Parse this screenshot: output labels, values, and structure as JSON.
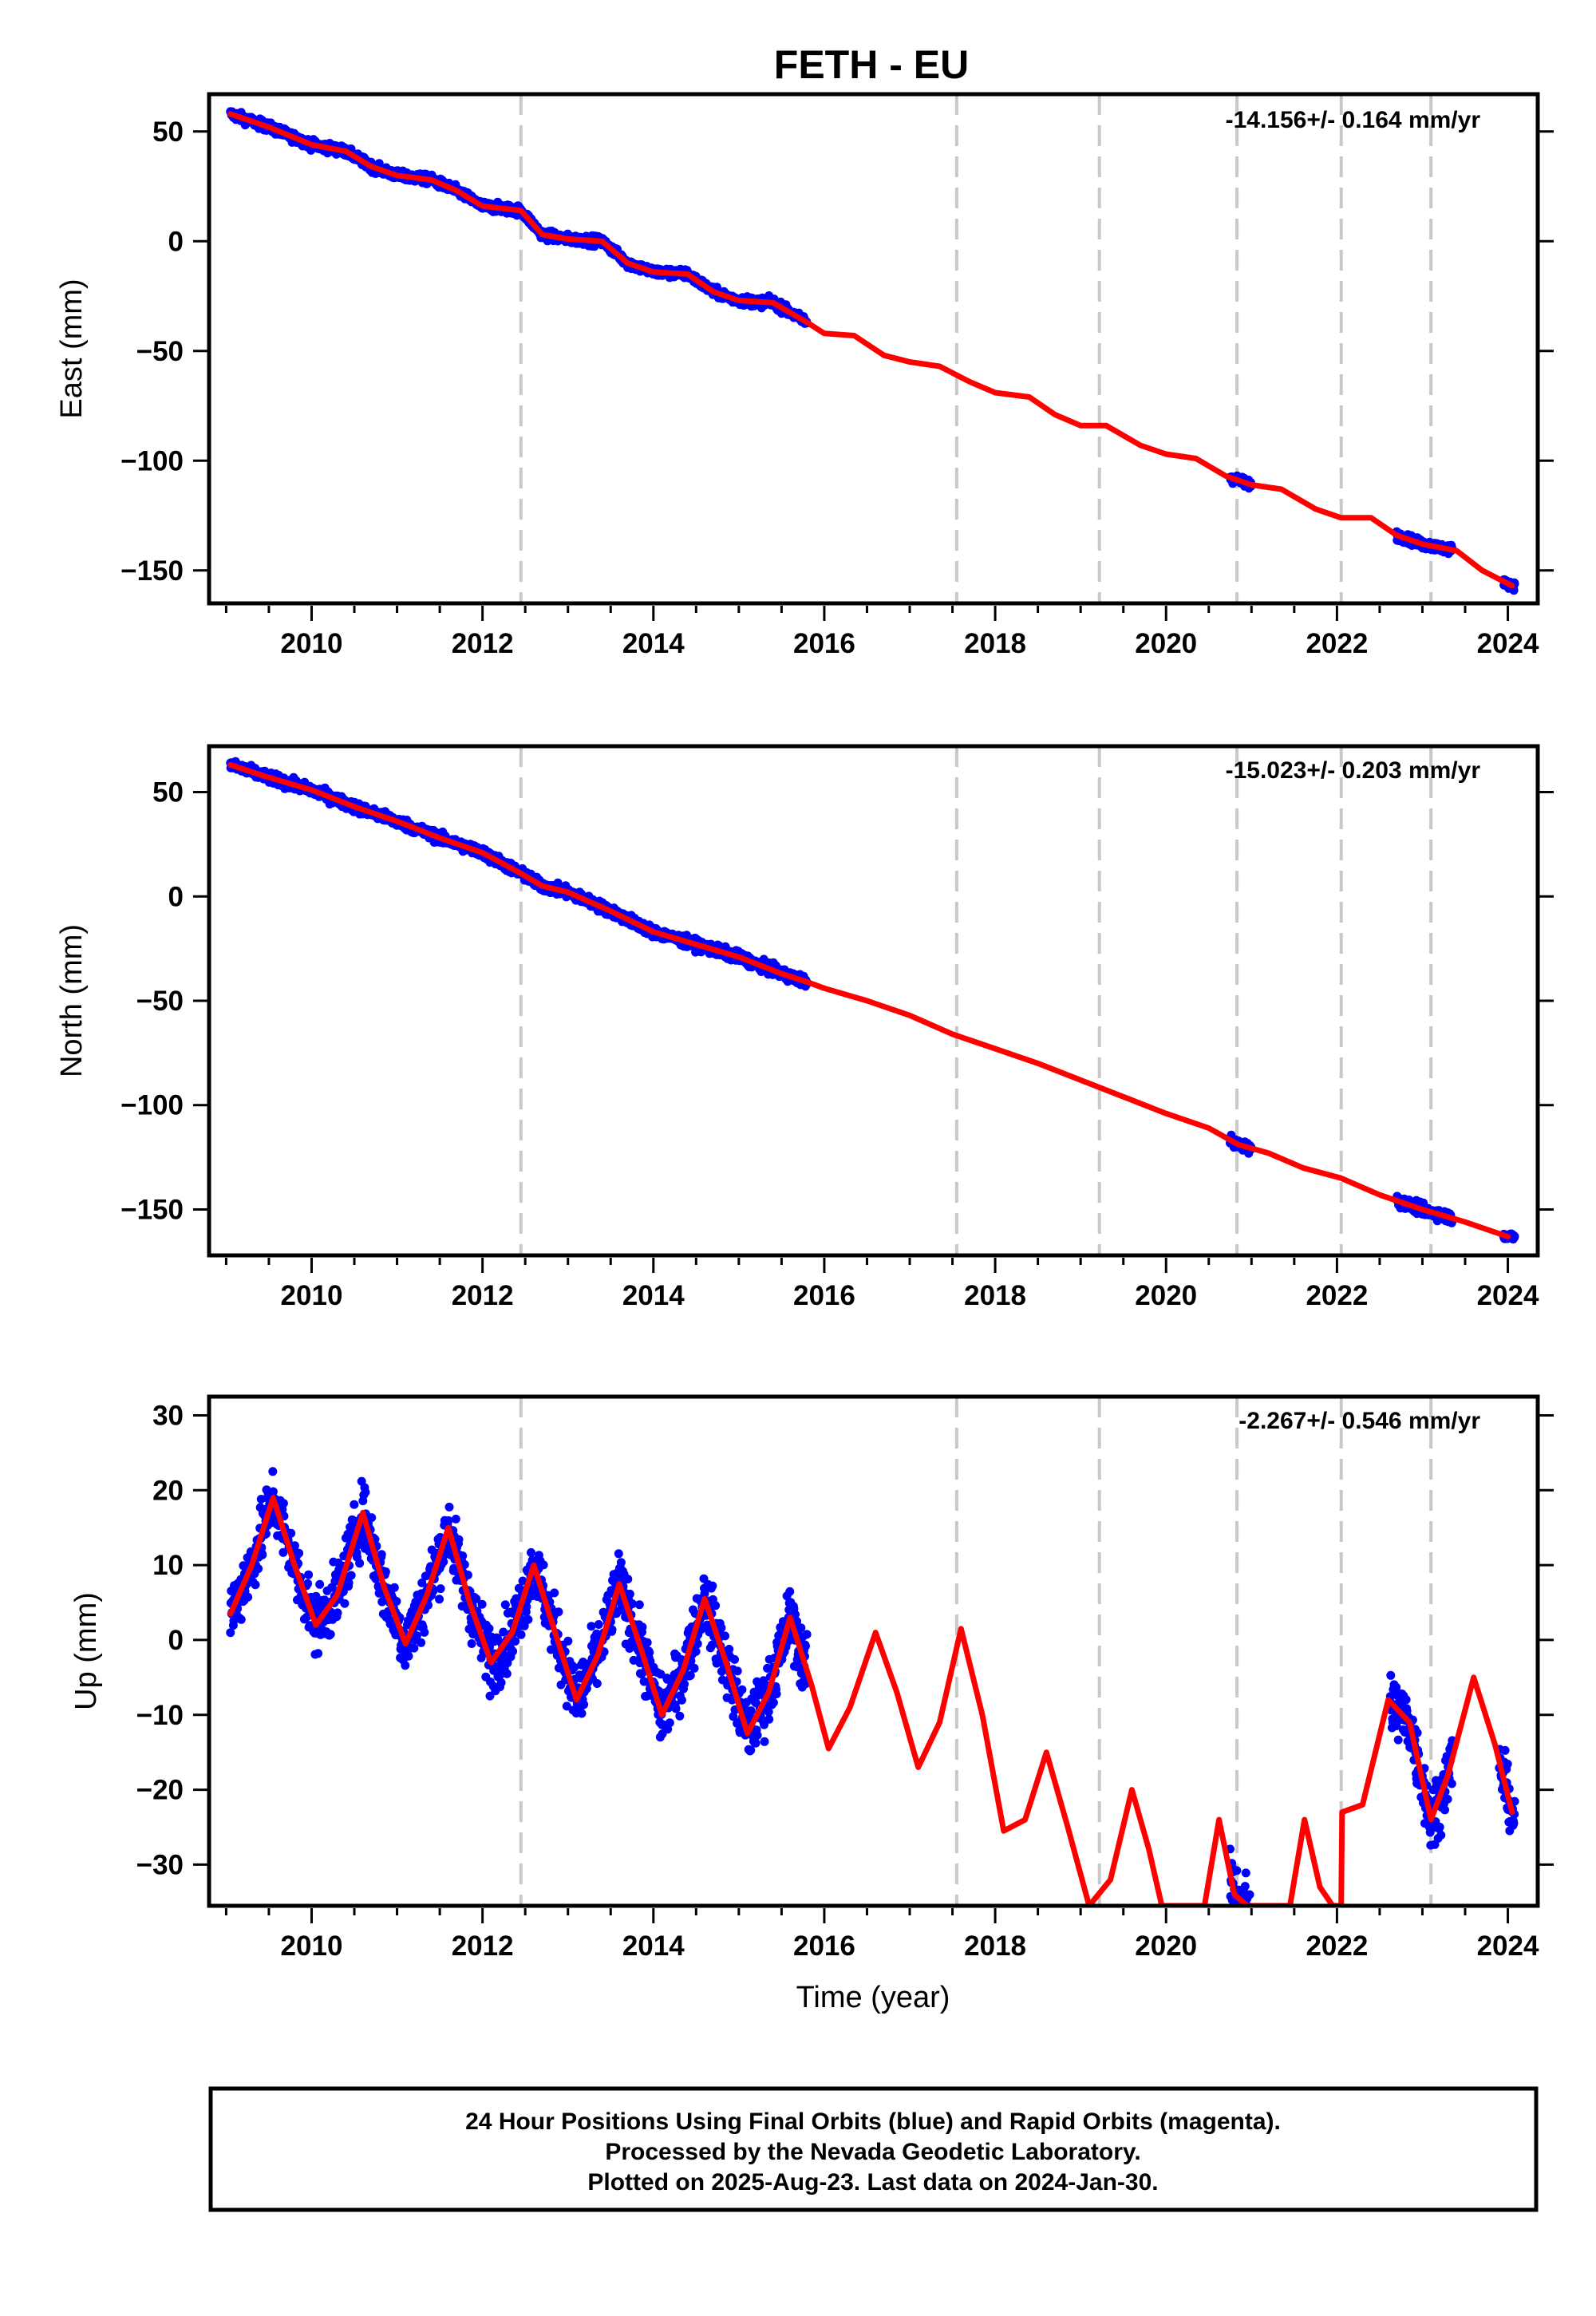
{
  "chart_data": {
    "title": "FETH - EU",
    "type": "scatter",
    "xlabel": "Time (year)",
    "xlim": [
      2008.8,
      2024.35
    ],
    "xticks": [
      2010,
      2012,
      2014,
      2016,
      2018,
      2020,
      2022,
      2024
    ],
    "equipment_change_epochs": [
      2012.45,
      2017.55,
      2019.22,
      2020.83,
      2022.05,
      2023.1
    ],
    "colors": {
      "data": "#0000ff",
      "model": "#ff0000",
      "event": "#c8c8c8"
    },
    "panels": [
      {
        "component": "East",
        "ylabel": "East (mm)",
        "ylim": [
          -165,
          67
        ],
        "yticks": [
          50,
          0,
          -50,
          -100,
          -150
        ],
        "rate_label": "-14.156+/- 0.164 mm/yr",
        "model_points": [
          [
            2009.05,
            58
          ],
          [
            2009.5,
            52
          ],
          [
            2010.0,
            44
          ],
          [
            2010.4,
            41
          ],
          [
            2010.7,
            34
          ],
          [
            2011.0,
            30
          ],
          [
            2011.4,
            28
          ],
          [
            2011.7,
            23
          ],
          [
            2012.0,
            16
          ],
          [
            2012.45,
            14
          ],
          [
            2012.7,
            3
          ],
          [
            2013.0,
            1
          ],
          [
            2013.4,
            0
          ],
          [
            2013.7,
            -10
          ],
          [
            2014.0,
            -14
          ],
          [
            2014.4,
            -15
          ],
          [
            2014.7,
            -23
          ],
          [
            2015.0,
            -27
          ],
          [
            2015.4,
            -28
          ],
          [
            2015.8,
            -37
          ],
          [
            2016.0,
            -42
          ],
          [
            2016.35,
            -43
          ],
          [
            2016.7,
            -52
          ],
          [
            2017.0,
            -55
          ],
          [
            2017.35,
            -57
          ],
          [
            2017.7,
            -64
          ],
          [
            2018.0,
            -69
          ],
          [
            2018.4,
            -71
          ],
          [
            2018.7,
            -79
          ],
          [
            2019.0,
            -84
          ],
          [
            2019.3,
            -84
          ],
          [
            2019.7,
            -93
          ],
          [
            2020.0,
            -97
          ],
          [
            2020.35,
            -99
          ],
          [
            2020.7,
            -107
          ],
          [
            2021.0,
            -111
          ],
          [
            2021.35,
            -113
          ],
          [
            2021.75,
            -122
          ],
          [
            2022.05,
            -126
          ],
          [
            2022.4,
            -126
          ],
          [
            2022.7,
            -134
          ],
          [
            2023.0,
            -138
          ],
          [
            2023.4,
            -141
          ],
          [
            2023.7,
            -150
          ],
          [
            2024.05,
            -157
          ]
        ],
        "data_segments": [
          {
            "start": 2009.05,
            "end": 2015.8,
            "amplitude": 2.5,
            "density": 1.6
          },
          {
            "start": 2020.75,
            "end": 2021.0,
            "amplitude": 2.5,
            "density": 1.6
          },
          {
            "start": 2022.7,
            "end": 2023.35,
            "amplitude": 2.5,
            "density": 1.6
          },
          {
            "start": 2023.95,
            "end": 2024.08,
            "amplitude": 2.0,
            "density": 1.6
          }
        ]
      },
      {
        "component": "North",
        "ylabel": "North (mm)",
        "ylim": [
          -172,
          72
        ],
        "yticks": [
          50,
          0,
          -50,
          -100,
          -150
        ],
        "rate_label": "-15.023+/- 0.203 mm/yr",
        "model_points": [
          [
            2009.05,
            63
          ],
          [
            2009.5,
            57
          ],
          [
            2010.0,
            51
          ],
          [
            2010.5,
            43
          ],
          [
            2011.0,
            36
          ],
          [
            2011.5,
            28
          ],
          [
            2012.0,
            21
          ],
          [
            2012.45,
            11
          ],
          [
            2012.7,
            5
          ],
          [
            2013.0,
            2
          ],
          [
            2013.5,
            -7
          ],
          [
            2014.0,
            -17
          ],
          [
            2014.5,
            -23
          ],
          [
            2015.0,
            -29
          ],
          [
            2015.5,
            -37
          ],
          [
            2015.8,
            -41
          ],
          [
            2016.0,
            -44
          ],
          [
            2016.5,
            -50
          ],
          [
            2017.0,
            -57
          ],
          [
            2017.5,
            -66
          ],
          [
            2018.0,
            -73
          ],
          [
            2018.5,
            -80
          ],
          [
            2019.0,
            -88
          ],
          [
            2019.5,
            -96
          ],
          [
            2020.0,
            -104
          ],
          [
            2020.5,
            -111
          ],
          [
            2020.85,
            -119
          ],
          [
            2021.2,
            -123
          ],
          [
            2021.6,
            -130
          ],
          [
            2022.05,
            -135
          ],
          [
            2022.5,
            -143
          ],
          [
            2023.0,
            -150
          ],
          [
            2023.5,
            -156
          ],
          [
            2024.0,
            -163
          ]
        ],
        "data_segments": [
          {
            "start": 2009.05,
            "end": 2015.8,
            "amplitude": 3.0,
            "density": 1.6
          },
          {
            "start": 2020.75,
            "end": 2021.0,
            "amplitude": 3.0,
            "density": 1.6
          },
          {
            "start": 2022.7,
            "end": 2023.35,
            "amplitude": 3.0,
            "density": 1.6
          },
          {
            "start": 2023.95,
            "end": 2024.08,
            "amplitude": 2.0,
            "density": 1.6
          }
        ]
      },
      {
        "component": "Up",
        "ylabel": "Up (mm)",
        "ylim": [
          -35.5,
          32.5
        ],
        "yticks": [
          30,
          20,
          10,
          0,
          -10,
          -20,
          -30
        ],
        "rate_label": "-2.267+/- 0.546 mm/yr",
        "model_points": [
          [
            2009.05,
            3.5
          ],
          [
            2009.3,
            10
          ],
          [
            2009.55,
            19
          ],
          [
            2009.8,
            10
          ],
          [
            2010.05,
            2
          ],
          [
            2010.3,
            6
          ],
          [
            2010.6,
            17
          ],
          [
            2010.85,
            7
          ],
          [
            2011.1,
            -0.5
          ],
          [
            2011.35,
            6
          ],
          [
            2011.6,
            15
          ],
          [
            2011.85,
            5
          ],
          [
            2012.1,
            -3
          ],
          [
            2012.35,
            1
          ],
          [
            2012.6,
            10
          ],
          [
            2012.85,
            1
          ],
          [
            2013.1,
            -8
          ],
          [
            2013.35,
            -2
          ],
          [
            2013.6,
            7.5
          ],
          [
            2013.85,
            -1
          ],
          [
            2014.1,
            -10
          ],
          [
            2014.35,
            -4
          ],
          [
            2014.6,
            5.5
          ],
          [
            2014.85,
            -3
          ],
          [
            2015.1,
            -12.5
          ],
          [
            2015.35,
            -7
          ],
          [
            2015.6,
            3
          ],
          [
            2015.85,
            -6
          ],
          [
            2016.05,
            -14.5
          ],
          [
            2016.3,
            -9
          ],
          [
            2016.6,
            1
          ],
          [
            2016.85,
            -7
          ],
          [
            2017.1,
            -17
          ],
          [
            2017.35,
            -11
          ],
          [
            2017.6,
            1.5
          ],
          [
            2017.85,
            -10
          ],
          [
            2018.1,
            -25.5
          ],
          [
            2018.35,
            -24
          ],
          [
            2018.6,
            -15
          ],
          [
            2018.85,
            -25
          ],
          [
            2019.1,
            -35.5
          ],
          [
            2019.35,
            -32
          ],
          [
            2019.6,
            -20
          ],
          [
            2019.8,
            -28
          ],
          [
            2019.95,
            -35.5
          ],
          [
            2020.45,
            -35.5
          ],
          [
            2020.62,
            -24
          ],
          [
            2020.8,
            -34
          ],
          [
            2020.95,
            -35.5
          ],
          [
            2021.45,
            -35.5
          ],
          [
            2021.62,
            -24
          ],
          [
            2021.8,
            -33
          ],
          [
            2021.95,
            -35.5
          ],
          [
            2022.05,
            -35.5
          ],
          [
            2022.06,
            -23
          ],
          [
            2022.3,
            -22
          ],
          [
            2022.6,
            -8
          ],
          [
            2022.85,
            -11
          ],
          [
            2023.1,
            -24
          ],
          [
            2023.3,
            -18
          ],
          [
            2023.6,
            -5
          ],
          [
            2023.85,
            -14
          ],
          [
            2024.05,
            -23
          ]
        ],
        "data_segments": [
          {
            "start": 2009.05,
            "end": 2015.8,
            "amplitude": 5.0,
            "density": 1.8
          },
          {
            "start": 2020.75,
            "end": 2020.98,
            "amplitude": 5.0,
            "density": 1.8
          },
          {
            "start": 2022.62,
            "end": 2023.35,
            "amplitude": 5.0,
            "density": 1.8
          },
          {
            "start": 2023.9,
            "end": 2024.08,
            "amplitude": 4.0,
            "density": 1.8
          }
        ]
      }
    ]
  },
  "footer": {
    "line1": "24 Hour Positions Using Final Orbits (blue) and Rapid Orbits (magenta).",
    "line2": "Processed by the Nevada Geodetic Laboratory.",
    "line3": "Plotted on 2025-Aug-23. Last data on 2024-Jan-30."
  }
}
